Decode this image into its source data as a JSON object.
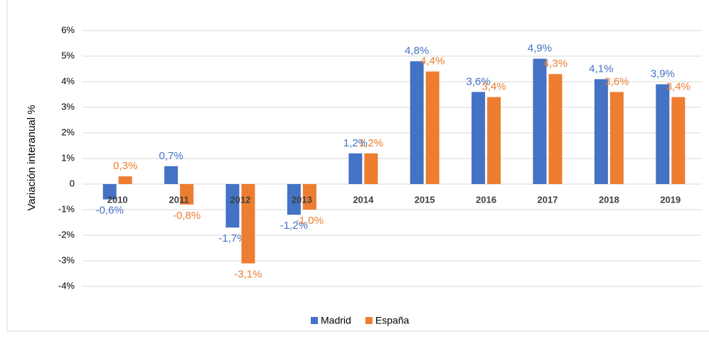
{
  "chart_data": {
    "type": "bar",
    "y_label": "Variación  interanual %",
    "categories": [
      "2010",
      "2011",
      "2012",
      "2013",
      "2014",
      "2015",
      "2016",
      "2017",
      "2018",
      "2019"
    ],
    "series": [
      {
        "name": "Madrid",
        "color": "#4472c4",
        "values": [
          -0.6,
          0.7,
          -1.7,
          -1.2,
          1.2,
          4.8,
          3.6,
          4.9,
          4.1,
          3.9
        ],
        "value_labels": [
          "-0,6%",
          "0,7%",
          "-1,7%",
          "-1,2%",
          "1,2%",
          "4,8%",
          "3,6%",
          "4,9%",
          "4,1%",
          "3,9%"
        ]
      },
      {
        "name": "España",
        "color": "#ed7d31",
        "values": [
          0.3,
          -0.8,
          -3.1,
          -1.0,
          1.2,
          4.4,
          3.4,
          4.3,
          3.6,
          3.4
        ],
        "value_labels": [
          "0,3%",
          "-0,8%",
          "-3,1%",
          "-1,0%",
          "1,2%",
          "4,4%",
          "3,4%",
          "4,3%",
          "3,6%",
          "3,4%"
        ]
      }
    ],
    "ylim": [
      -4,
      6
    ],
    "yticks": [
      {
        "value": -4,
        "label": "-4%"
      },
      {
        "value": -3,
        "label": "-3%"
      },
      {
        "value": -2,
        "label": "-2%"
      },
      {
        "value": -1,
        "label": "-1%"
      },
      {
        "value": 0,
        "label": "0"
      },
      {
        "value": 1,
        "label": "1%"
      },
      {
        "value": 2,
        "label": "2%"
      },
      {
        "value": 3,
        "label": "3%"
      },
      {
        "value": 4,
        "label": "4%"
      },
      {
        "value": 5,
        "label": "5%"
      },
      {
        "value": 6,
        "label": "6%"
      }
    ],
    "grid": true,
    "legend": "bottom"
  }
}
